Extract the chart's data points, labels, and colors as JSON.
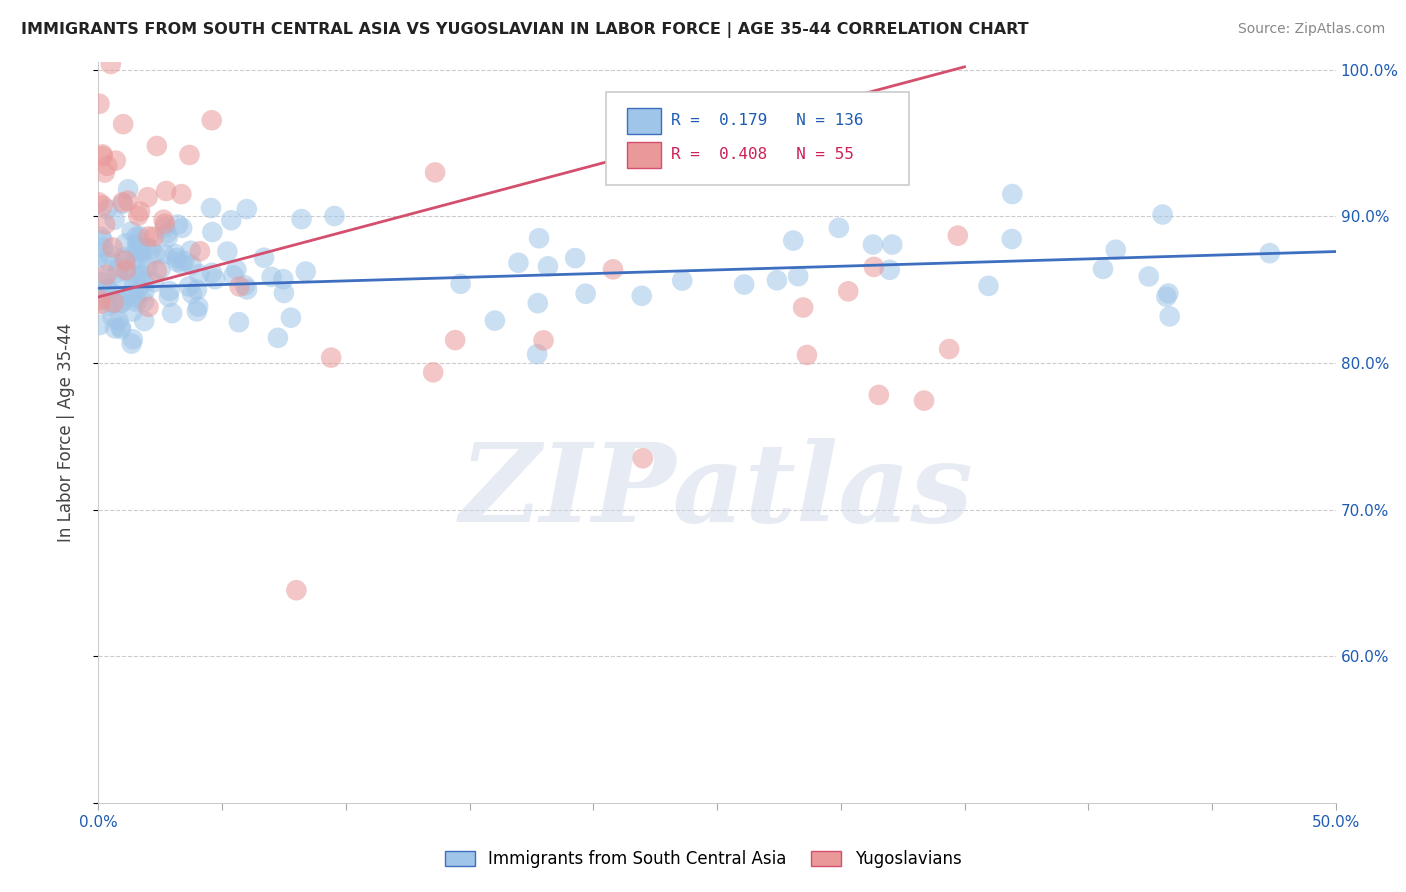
{
  "title": "IMMIGRANTS FROM SOUTH CENTRAL ASIA VS YUGOSLAVIAN IN LABOR FORCE | AGE 35-44 CORRELATION CHART",
  "source": "Source: ZipAtlas.com",
  "ylabel": "In Labor Force | Age 35-44",
  "blue_R": 0.179,
  "blue_N": 136,
  "pink_R": 0.408,
  "pink_N": 55,
  "blue_color": "#9fc5e8",
  "pink_color": "#ea9999",
  "blue_line_color": "#3d6ebf",
  "pink_line_color": "#d44f6e",
  "legend_label_blue": "Immigrants from South Central Asia",
  "legend_label_pink": "Yugoslavians",
  "xlim": [
    0.0,
    0.5
  ],
  "ylim": [
    0.5,
    1.005
  ],
  "watermark": "ZIPatlas",
  "yticks": [
    0.5,
    0.6,
    0.7,
    0.8,
    0.9,
    1.0
  ],
  "ytick_labels": [
    "",
    "60.0%",
    "70.0%",
    "80.0%",
    "90.0%",
    "100.0%"
  ],
  "xticks": [
    0.0,
    0.05,
    0.1,
    0.15,
    0.2,
    0.25,
    0.3,
    0.35,
    0.4,
    0.45,
    0.5
  ],
  "xtick_labels": [
    "0.0%",
    "",
    "",
    "",
    "",
    "",
    "",
    "",
    "",
    "",
    "50.0%"
  ]
}
